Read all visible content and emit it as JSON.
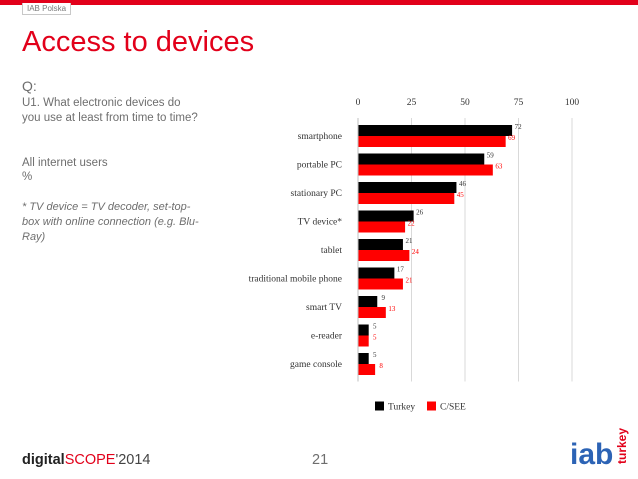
{
  "header": {
    "tag": "IAB Polska",
    "title": "Access to devices"
  },
  "question": {
    "q_label": "Q:",
    "text": "U1. What electronic devices do you use at least from time to time?",
    "base": "All internet users",
    "unit": "%",
    "note": "* TV device = TV decoder, set-top-box with online connection (e.g. Blu-Ray)"
  },
  "footer": {
    "brand_part1": "digital",
    "brand_part2": "SCOPE",
    "brand_part3": "'2014",
    "page_number": "21"
  },
  "logo": {
    "main": "iab",
    "sub": "turkey"
  },
  "colors": {
    "accent": "#e2001a",
    "turkey": "#000000",
    "csee": "#ff0000"
  },
  "chart_data": {
    "type": "bar",
    "orientation": "horizontal",
    "categories": [
      "smartphone",
      "portable PC",
      "stationary PC",
      "TV device*",
      "tablet",
      "traditional mobile phone",
      "smart TV",
      "e-reader",
      "game console"
    ],
    "series": [
      {
        "name": "Turkey",
        "values": [
          72,
          59,
          46,
          26,
          21,
          17,
          9,
          5,
          5
        ]
      },
      {
        "name": "C/SEE",
        "values": [
          69,
          63,
          45,
          22,
          24,
          21,
          13,
          5,
          8
        ]
      }
    ],
    "xlim": [
      0,
      100
    ],
    "xticks": [
      0,
      25,
      50,
      75,
      100
    ],
    "axis_position": "top",
    "legend_position": "bottom",
    "grid": true
  }
}
